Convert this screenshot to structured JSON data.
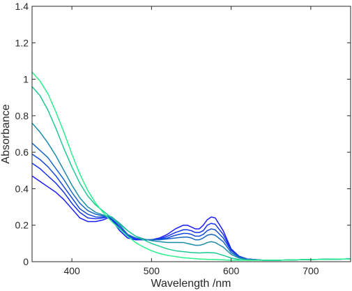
{
  "chart_data": {
    "type": "line",
    "xlabel": "Wavelength /nm",
    "ylabel": "Absorbance",
    "xlim": [
      350,
      750
    ],
    "ylim": [
      0,
      1.4
    ],
    "xticks": [
      400,
      500,
      600,
      700
    ],
    "yticks": [
      0,
      0.2,
      0.4,
      0.6,
      0.8,
      1,
      1.2,
      1.4
    ],
    "xtick_labels": [
      "400",
      "500",
      "600",
      "700"
    ],
    "ytick_labels": [
      "0",
      "0.2",
      "0.4",
      "0.6",
      "0.8",
      "1",
      "1.2",
      "1.4"
    ],
    "grid": false,
    "box": true,
    "series": [
      {
        "color": "#1a1aff",
        "x": [
          350,
          360,
          370,
          380,
          390,
          400,
          410,
          420,
          430,
          440,
          445,
          450,
          460,
          470,
          480,
          490,
          500,
          510,
          520,
          530,
          540,
          545,
          550,
          555,
          560,
          565,
          570,
          575,
          580,
          590,
          600,
          610,
          620,
          640,
          660,
          700,
          750
        ],
        "y": [
          0.47,
          0.44,
          0.41,
          0.38,
          0.34,
          0.29,
          0.24,
          0.22,
          0.22,
          0.23,
          0.24,
          0.23,
          0.17,
          0.13,
          0.12,
          0.12,
          0.12,
          0.13,
          0.15,
          0.18,
          0.2,
          0.2,
          0.19,
          0.18,
          0.18,
          0.2,
          0.23,
          0.245,
          0.24,
          0.17,
          0.07,
          0.03,
          0.015,
          0.008,
          0.008,
          0.012,
          0.015
        ]
      },
      {
        "color": "#1530f0",
        "x": [
          350,
          360,
          370,
          380,
          390,
          400,
          410,
          420,
          430,
          440,
          445,
          450,
          460,
          470,
          480,
          490,
          500,
          510,
          520,
          530,
          540,
          545,
          550,
          555,
          560,
          565,
          570,
          575,
          580,
          590,
          600,
          610,
          620,
          640,
          660,
          700,
          750
        ],
        "y": [
          0.54,
          0.51,
          0.47,
          0.43,
          0.38,
          0.32,
          0.27,
          0.24,
          0.235,
          0.24,
          0.245,
          0.235,
          0.18,
          0.14,
          0.125,
          0.12,
          0.12,
          0.125,
          0.14,
          0.16,
          0.175,
          0.175,
          0.17,
          0.16,
          0.16,
          0.17,
          0.2,
          0.21,
          0.205,
          0.15,
          0.065,
          0.03,
          0.015,
          0.008,
          0.008,
          0.012,
          0.015
        ]
      },
      {
        "color": "#1248dc",
        "x": [
          350,
          360,
          370,
          380,
          390,
          400,
          410,
          420,
          430,
          440,
          445,
          450,
          460,
          470,
          480,
          490,
          500,
          510,
          520,
          530,
          540,
          545,
          550,
          555,
          560,
          565,
          570,
          575,
          580,
          590,
          600,
          610,
          620,
          640,
          660,
          700,
          750
        ],
        "y": [
          0.59,
          0.56,
          0.52,
          0.47,
          0.41,
          0.35,
          0.29,
          0.26,
          0.245,
          0.245,
          0.245,
          0.24,
          0.19,
          0.145,
          0.13,
          0.12,
          0.12,
          0.125,
          0.13,
          0.145,
          0.155,
          0.155,
          0.15,
          0.14,
          0.14,
          0.15,
          0.17,
          0.18,
          0.175,
          0.13,
          0.06,
          0.028,
          0.015,
          0.008,
          0.008,
          0.012,
          0.015
        ]
      },
      {
        "color": "#1664c8",
        "x": [
          350,
          360,
          370,
          380,
          390,
          400,
          410,
          420,
          430,
          440,
          445,
          450,
          460,
          470,
          480,
          490,
          500,
          510,
          520,
          530,
          540,
          545,
          550,
          555,
          560,
          565,
          570,
          575,
          580,
          590,
          600,
          610,
          620,
          640,
          660,
          700,
          750
        ],
        "y": [
          0.65,
          0.61,
          0.57,
          0.51,
          0.45,
          0.38,
          0.32,
          0.28,
          0.26,
          0.25,
          0.25,
          0.245,
          0.2,
          0.15,
          0.13,
          0.12,
          0.12,
          0.12,
          0.125,
          0.13,
          0.135,
          0.135,
          0.13,
          0.12,
          0.12,
          0.13,
          0.145,
          0.15,
          0.145,
          0.11,
          0.05,
          0.025,
          0.013,
          0.008,
          0.008,
          0.012,
          0.015
        ]
      },
      {
        "color": "#1a8caa",
        "x": [
          350,
          360,
          370,
          380,
          390,
          400,
          410,
          420,
          430,
          440,
          445,
          450,
          460,
          470,
          480,
          490,
          500,
          510,
          520,
          530,
          540,
          545,
          550,
          555,
          560,
          565,
          570,
          575,
          580,
          590,
          600,
          610,
          620,
          640,
          660,
          700,
          750
        ],
        "y": [
          0.76,
          0.71,
          0.65,
          0.58,
          0.5,
          0.42,
          0.35,
          0.3,
          0.27,
          0.255,
          0.25,
          0.245,
          0.21,
          0.17,
          0.14,
          0.125,
          0.115,
          0.11,
          0.105,
          0.105,
          0.105,
          0.1,
          0.095,
          0.09,
          0.09,
          0.095,
          0.105,
          0.11,
          0.105,
          0.08,
          0.04,
          0.02,
          0.012,
          0.008,
          0.008,
          0.012,
          0.015
        ]
      },
      {
        "color": "#1ec896",
        "x": [
          350,
          360,
          370,
          380,
          390,
          400,
          410,
          420,
          430,
          440,
          450,
          460,
          470,
          480,
          490,
          500,
          510,
          520,
          530,
          540,
          550,
          560,
          570,
          580,
          590,
          600,
          610,
          620,
          640,
          660,
          700,
          750
        ],
        "y": [
          0.96,
          0.91,
          0.83,
          0.73,
          0.62,
          0.52,
          0.43,
          0.36,
          0.31,
          0.275,
          0.24,
          0.205,
          0.17,
          0.14,
          0.12,
          0.1,
          0.085,
          0.07,
          0.06,
          0.055,
          0.05,
          0.048,
          0.05,
          0.048,
          0.035,
          0.02,
          0.012,
          0.008,
          0.008,
          0.008,
          0.012,
          0.015
        ]
      },
      {
        "color": "#28f08c",
        "x": [
          350,
          360,
          370,
          380,
          390,
          400,
          410,
          420,
          430,
          440,
          450,
          460,
          470,
          480,
          490,
          500,
          510,
          520,
          530,
          540,
          550,
          560,
          570,
          580,
          590,
          600,
          610,
          620,
          640,
          660,
          700,
          750
        ],
        "y": [
          1.04,
          0.99,
          0.92,
          0.82,
          0.71,
          0.59,
          0.48,
          0.39,
          0.32,
          0.265,
          0.22,
          0.18,
          0.14,
          0.105,
          0.08,
          0.06,
          0.045,
          0.035,
          0.028,
          0.022,
          0.018,
          0.015,
          0.013,
          0.012,
          0.01,
          0.008,
          0.008,
          0.008,
          0.008,
          0.008,
          0.012,
          0.015
        ]
      }
    ]
  }
}
